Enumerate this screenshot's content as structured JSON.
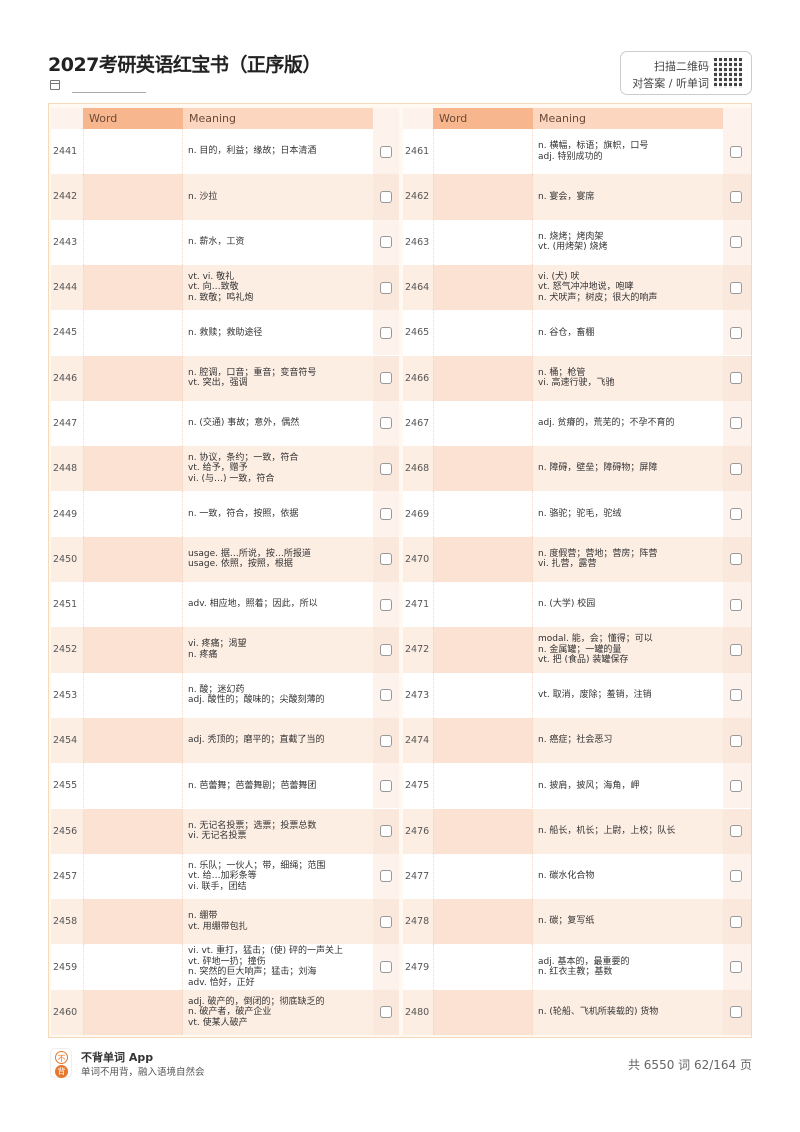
{
  "title": "2027考研英语红宝书（正序版）",
  "qr": {
    "line1": "扫描二维码",
    "line2": "对答案 / 听单词"
  },
  "headers": {
    "word": "Word",
    "meaning": "Meaning"
  },
  "colors": {
    "header_word": "#f8b68e",
    "header_meaning": "#fcd6bf",
    "row_alt": "#fdeee4",
    "accent": "#e8762d"
  },
  "left": [
    {
      "num": "2441",
      "meaning": "n. 目的，利益；缘故；日本清酒"
    },
    {
      "num": "2442",
      "meaning": "n. 沙拉"
    },
    {
      "num": "2443",
      "meaning": "n. 薪水，工资"
    },
    {
      "num": "2444",
      "meaning": "vt. vi. 敬礼\nvt. 向…致敬\nn. 致敬；鸣礼炮"
    },
    {
      "num": "2445",
      "meaning": "n. 救赎；救助途径"
    },
    {
      "num": "2446",
      "meaning": "n. 腔调，口音；重音；变音符号\nvt. 突出，强调"
    },
    {
      "num": "2447",
      "meaning": "n. (交通) 事故；意外，偶然"
    },
    {
      "num": "2448",
      "meaning": "n. 协议，条约；一致，符合\nvt. 给予，赠予\nvi. (与…) 一致，符合"
    },
    {
      "num": "2449",
      "meaning": "n. 一致，符合，按照，依据"
    },
    {
      "num": "2450",
      "meaning": "usage. 据…所说，按…所报道\nusage. 依照，按照，根据"
    },
    {
      "num": "2451",
      "meaning": "adv. 相应地，照着；因此，所以"
    },
    {
      "num": "2452",
      "meaning": "vi. 疼痛；渴望\nn. 疼痛"
    },
    {
      "num": "2453",
      "meaning": "n. 酸；迷幻药\nadj. 酸性的；酸味的；尖酸刻薄的"
    },
    {
      "num": "2454",
      "meaning": "adj. 秃顶的；磨平的；直截了当的"
    },
    {
      "num": "2455",
      "meaning": "n. 芭蕾舞；芭蕾舞剧；芭蕾舞团"
    },
    {
      "num": "2456",
      "meaning": "n. 无记名投票；选票；投票总数\nvi. 无记名投票"
    },
    {
      "num": "2457",
      "meaning": "n. 乐队；一伙人；带，细绳；范围\nvt. 给…加彩条等\nvi. 联手，团结"
    },
    {
      "num": "2458",
      "meaning": "n. 绷带\nvt. 用绷带包扎"
    },
    {
      "num": "2459",
      "meaning": "vi. vt. 重打，猛击；(使) 砰的一声关上\nvt. 砰地一扔；撞伤\nn. 突然的巨大响声；猛击；刘海\nadv. 恰好，正好"
    },
    {
      "num": "2460",
      "meaning": "adj. 破产的，倒闭的；彻底缺乏的\nn. 破产者，破产企业\nvt. 使某人破产"
    }
  ],
  "right": [
    {
      "num": "2461",
      "meaning": "n. 横幅，标语；旗帜，口号\nadj. 特别成功的"
    },
    {
      "num": "2462",
      "meaning": "n. 宴会，宴席"
    },
    {
      "num": "2463",
      "meaning": "n. 烧烤；烤肉架\nvt. (用烤架) 烧烤"
    },
    {
      "num": "2464",
      "meaning": "vi. (犬) 吠\nvt. 怒气冲冲地说，咆哮\nn. 犬吠声；树皮；很大的响声"
    },
    {
      "num": "2465",
      "meaning": "n. 谷仓，畜棚"
    },
    {
      "num": "2466",
      "meaning": "n. 桶；枪管\nvi. 高速行驶，飞驰"
    },
    {
      "num": "2467",
      "meaning": "adj. 贫瘠的，荒芜的；不孕不育的"
    },
    {
      "num": "2468",
      "meaning": "n. 障碍，壁垒；障碍物；屏障"
    },
    {
      "num": "2469",
      "meaning": "n. 骆驼；驼毛，驼绒"
    },
    {
      "num": "2470",
      "meaning": "n. 度假营；营地；营房；阵营\nvi. 扎营，露营"
    },
    {
      "num": "2471",
      "meaning": "n. (大学) 校园"
    },
    {
      "num": "2472",
      "meaning": "modal. 能，会；懂得；可以\nn. 金属罐；一罐的量\nvt. 把 (食品) 装罐保存"
    },
    {
      "num": "2473",
      "meaning": "vt. 取消，废除；羞销，注销"
    },
    {
      "num": "2474",
      "meaning": "n. 癌症；社会恶习"
    },
    {
      "num": "2475",
      "meaning": "n. 披肩，披风；海角，岬"
    },
    {
      "num": "2476",
      "meaning": "n. 船长，机长；上尉，上校；队长"
    },
    {
      "num": "2477",
      "meaning": "n. 碳水化合物"
    },
    {
      "num": "2478",
      "meaning": "n. 碳；复写纸"
    },
    {
      "num": "2479",
      "meaning": "adj. 基本的，最重要的\nn. 红衣主教；基数"
    },
    {
      "num": "2480",
      "meaning": "n. (轮船、飞机所装载的) 货物"
    }
  ],
  "footer": {
    "logo_top": "不",
    "logo_bottom": "背",
    "app": "不背单词 App",
    "slogan": "单词不用背，融入语境自然会",
    "page": "共 6550 词 62/164 页"
  }
}
